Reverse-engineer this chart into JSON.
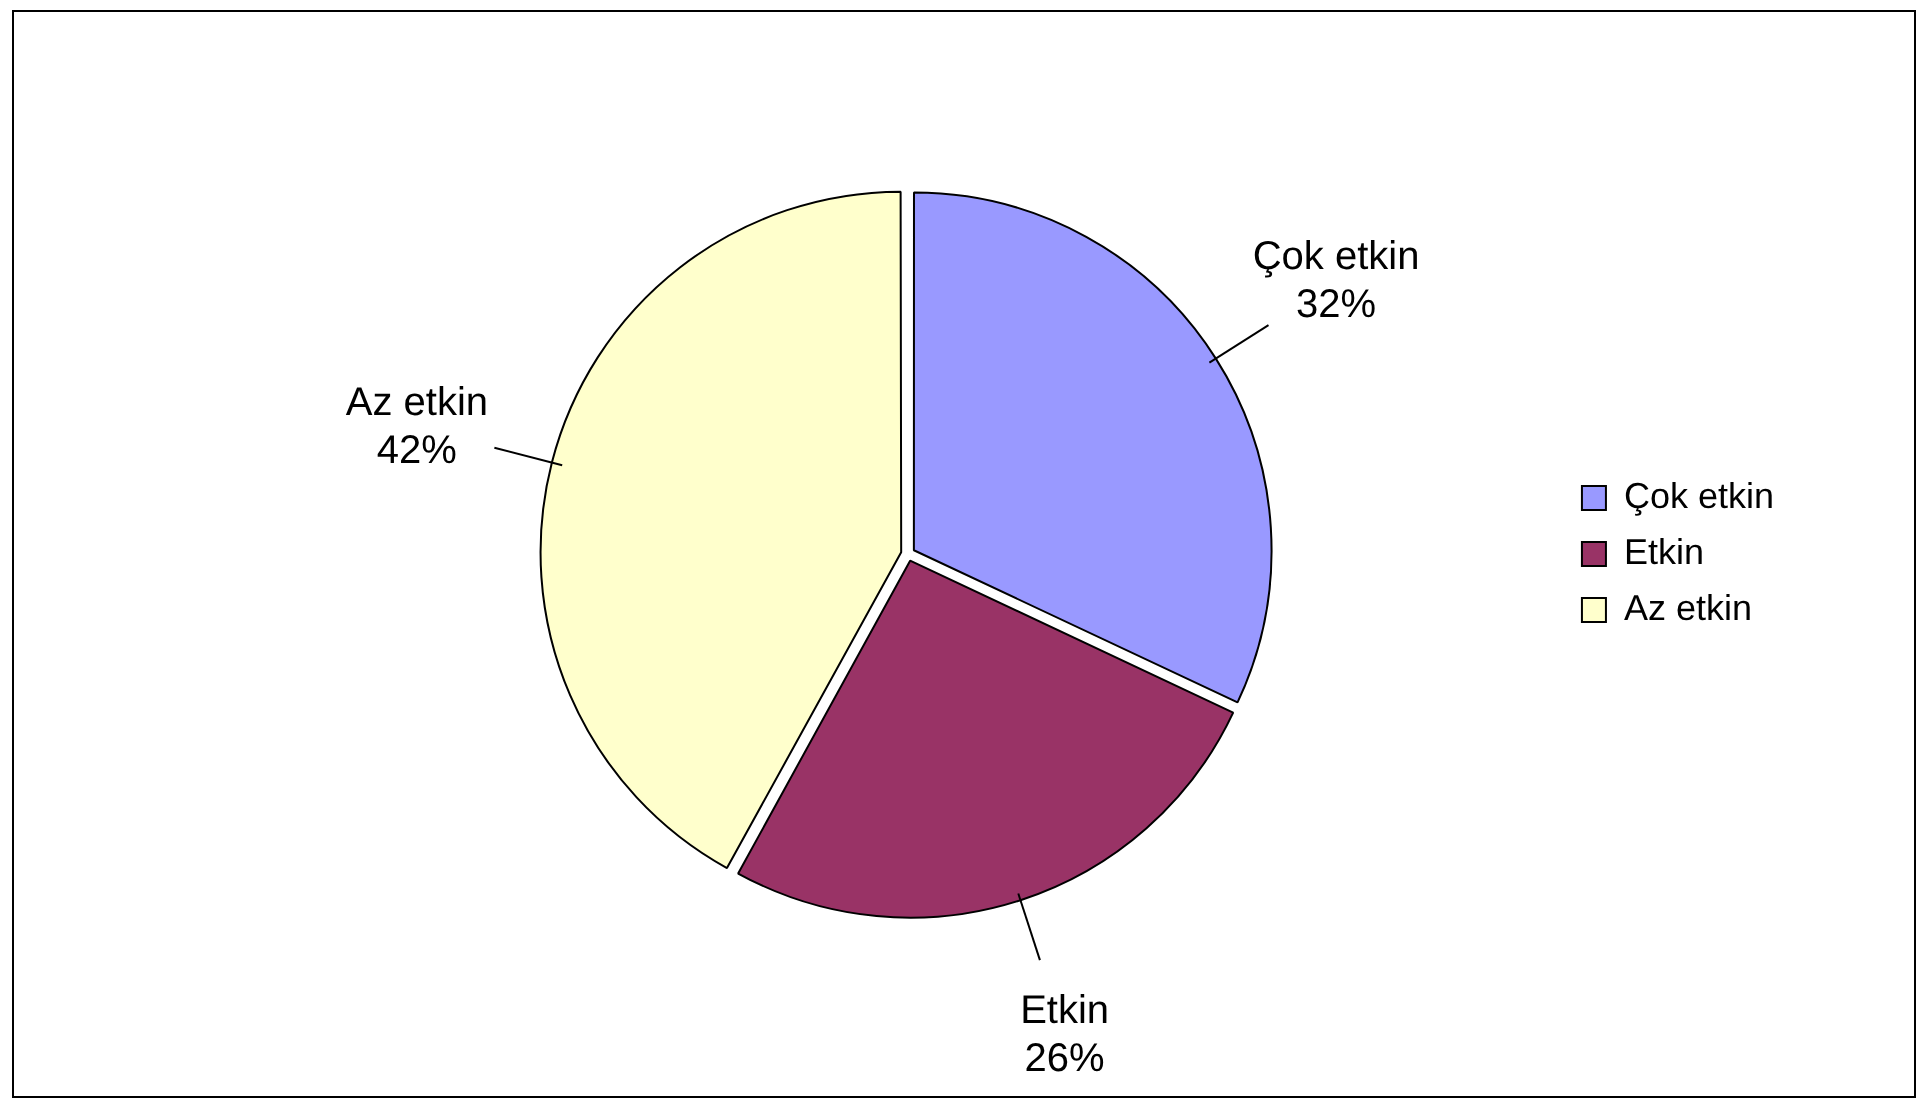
{
  "chart_data": {
    "type": "pie",
    "categories": [
      "Çok etkin",
      "Etkin",
      "Az etkin"
    ],
    "values": [
      32,
      26,
      42
    ],
    "colors": [
      "#9999ff",
      "#993366",
      "#ffffcc"
    ],
    "value_labels": [
      "32%",
      "26%",
      "42%"
    ],
    "legend": "right"
  }
}
